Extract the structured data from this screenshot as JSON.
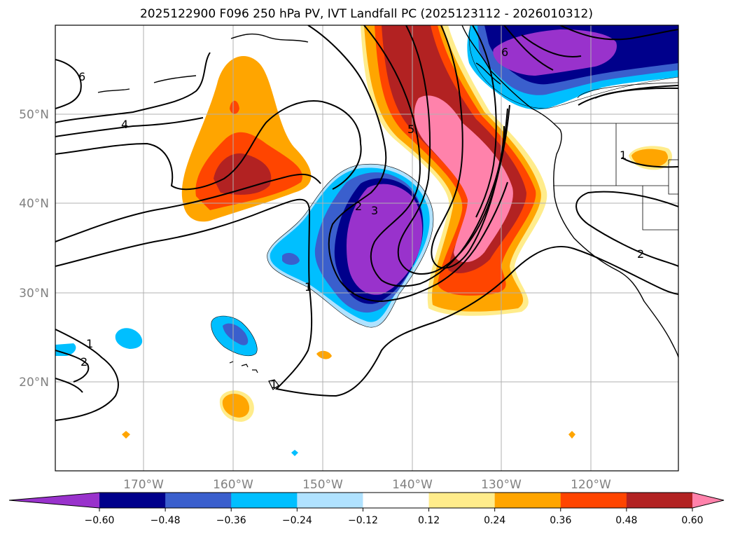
{
  "title": "2025122900 F096 250 hPa PV, IVT Landfall PC (2025123112 - 2026010312)",
  "lat_labels": [
    "50°N",
    "40°N",
    "30°N",
    "20°N"
  ],
  "lon_labels": [
    "170°W",
    "160°W",
    "150°W",
    "140°W",
    "130°W",
    "120°W"
  ],
  "colorbar": {
    "colors": [
      "#9932cc",
      "#00008b",
      "#3a5fcd",
      "#00bfff",
      "#b0e2ff",
      "#ffffff",
      "#ffec8b",
      "#ffa500",
      "#ff4500",
      "#b22222",
      "#ff82ab"
    ],
    "tick_labels": [
      "−0.60",
      "−0.48",
      "−0.36",
      "−0.24",
      "−0.12",
      "0.12",
      "0.24",
      "0.36",
      "0.48",
      "0.60"
    ]
  },
  "contour_labels": [
    "6",
    "4",
    "3",
    "2",
    "1",
    "5",
    "6",
    "2",
    "1",
    "2",
    "1",
    "1"
  ]
}
